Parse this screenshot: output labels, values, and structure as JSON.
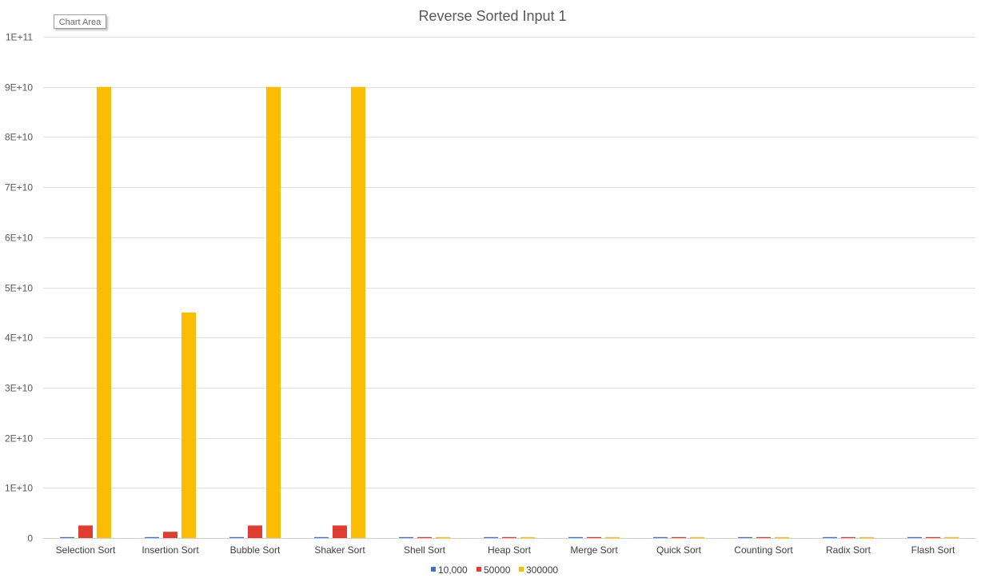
{
  "tooltip": {
    "label": "Chart Area"
  },
  "chart_data": {
    "type": "bar",
    "title": "Reverse Sorted Input 1",
    "xlabel": "",
    "ylabel": "",
    "ylim": [
      0,
      100000000000
    ],
    "yticks": [
      {
        "value": 0,
        "label": "0"
      },
      {
        "value": 10000000000,
        "label": "1E+10"
      },
      {
        "value": 20000000000,
        "label": "2E+10"
      },
      {
        "value": 30000000000,
        "label": "3E+10"
      },
      {
        "value": 40000000000,
        "label": "4E+10"
      },
      {
        "value": 50000000000,
        "label": "5E+10"
      },
      {
        "value": 60000000000,
        "label": "6E+10"
      },
      {
        "value": 70000000000,
        "label": "7E+10"
      },
      {
        "value": 80000000000,
        "label": "8E+10"
      },
      {
        "value": 90000000000,
        "label": "9E+10"
      },
      {
        "value": 100000000000,
        "label": "1E+11"
      }
    ],
    "grid": true,
    "legend_position": "bottom",
    "categories": [
      "Selection Sort",
      "Insertion Sort",
      "Bubble Sort",
      "Shaker Sort",
      "Shell Sort",
      "Heap Sort",
      "Merge Sort",
      "Quick Sort",
      "Counting Sort",
      "Radix Sort",
      "Flash Sort"
    ],
    "series": [
      {
        "name": "10,000",
        "color": "#4472c4",
        "values": [
          100000000,
          50000000,
          100000000,
          100000000,
          1000000,
          1000000,
          1000000,
          1000000,
          1000000,
          1000000,
          1000000
        ]
      },
      {
        "name": "50000",
        "color": "#e03c31",
        "values": [
          2500000000,
          1250000000,
          2500000000,
          2500000000,
          5000000,
          5000000,
          5000000,
          5000000,
          1000000,
          5000000,
          5000000
        ]
      },
      {
        "name": "300000",
        "color": "#fbbc04",
        "values": [
          90000000000,
          45000000000,
          90000000000,
          90000000000,
          30000000,
          30000000,
          30000000,
          30000000,
          5000000,
          30000000,
          30000000
        ]
      }
    ]
  }
}
